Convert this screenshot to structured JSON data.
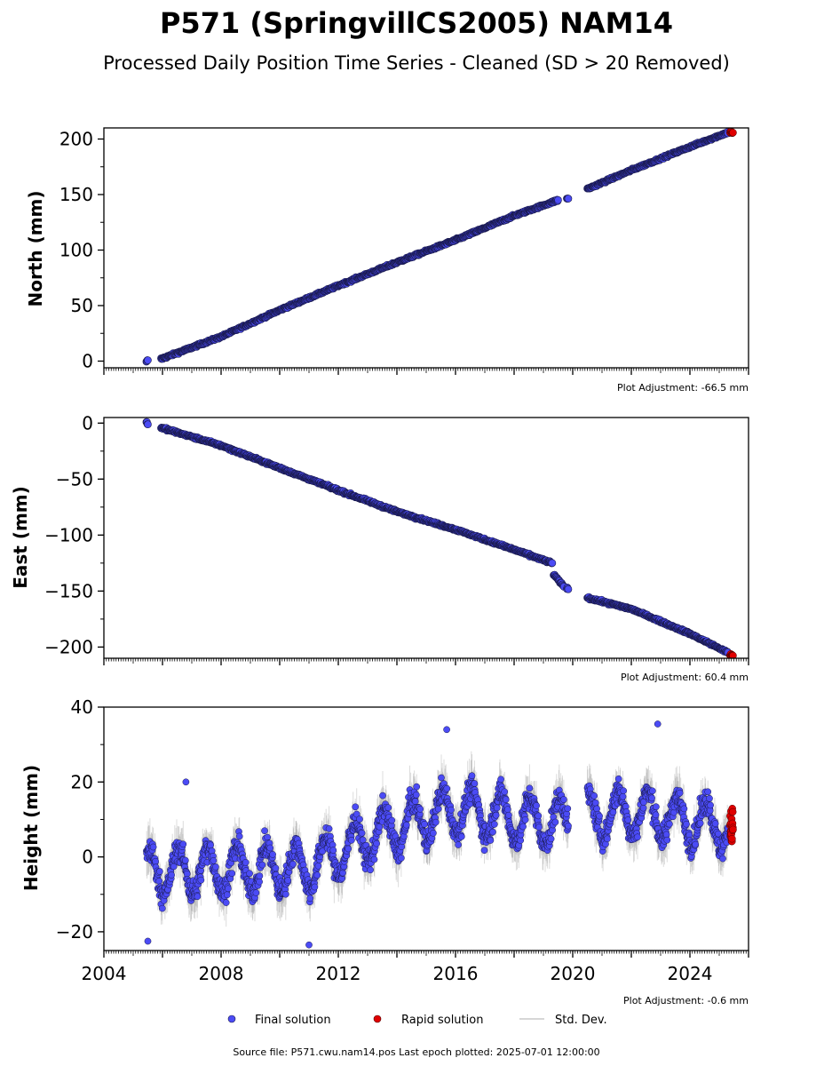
{
  "title": "P571 (SpringvillCS2005) NAM14",
  "subtitle": "Processed Daily Position Time Series - Cleaned (SD > 20 Removed)",
  "footer": "Source file: P571.cwu.nam14.pos  Last epoch plotted: 2025-07-01 12:00:00",
  "colors": {
    "final": "#4b4bf5",
    "rapid": "#e00000",
    "stddev": "#9a9a9a",
    "edge": "#1a1a4d"
  },
  "legend": [
    {
      "label": "Final solution",
      "marker": "dot",
      "color": "#4b4bf5"
    },
    {
      "label": "Rapid solution",
      "marker": "dot",
      "color": "#e00000"
    },
    {
      "label": "Std. Dev.",
      "marker": "line",
      "color": "#c8c8c8"
    }
  ],
  "chart_data": [
    {
      "type": "scatter",
      "ylabel": "North (mm)",
      "adjustment": "Plot Adjustment: -66.5 mm",
      "xlim": [
        2004,
        2026
      ],
      "ylim": [
        -6,
        210
      ],
      "yticks": [
        0,
        50,
        100,
        150,
        200
      ],
      "ytick_labels": [
        "0",
        "50",
        "100",
        "150",
        "200"
      ],
      "show_xticklabels": false,
      "segments": [
        {
          "x": [
            2005.45,
            2005.5
          ],
          "y": [
            -1,
            1
          ]
        },
        {
          "x": [
            2005.95,
            2008.0,
            2010.0,
            2012.0,
            2014.0,
            2016.0,
            2018.0,
            2019.5
          ],
          "y": [
            2,
            22,
            46,
            68,
            89,
            109,
            131,
            145
          ]
        },
        {
          "x": [
            2019.8,
            2019.85
          ],
          "y": [
            146,
            147
          ]
        },
        {
          "x": [
            2020.5,
            2022.0,
            2024.0,
            2025.3
          ],
          "y": [
            155,
            172,
            193,
            206
          ]
        }
      ],
      "rapid": {
        "x": [
          2025.35,
          2025.55
        ],
        "y": [
          205,
          207
        ]
      }
    },
    {
      "type": "scatter",
      "ylabel": "East (mm)",
      "adjustment": "Plot Adjustment: 60.4 mm",
      "xlim": [
        2004,
        2026
      ],
      "ylim": [
        -210,
        5
      ],
      "yticks": [
        0,
        -50,
        -100,
        -150,
        -200
      ],
      "ytick_labels": [
        "0",
        "−50",
        "−100",
        "−150",
        "−200"
      ],
      "show_xticklabels": false,
      "segments": [
        {
          "x": [
            2005.45,
            2005.5
          ],
          "y": [
            1,
            -1
          ]
        },
        {
          "x": [
            2005.95,
            2008.0,
            2010.0,
            2012.0,
            2014.0,
            2016.0,
            2018.0,
            2019.3
          ],
          "y": [
            -4,
            -20,
            -40,
            -60,
            -79,
            -95,
            -113,
            -125
          ]
        },
        {
          "x": [
            2019.35,
            2019.5,
            2019.7
          ],
          "y": [
            -135,
            -140,
            -146
          ]
        },
        {
          "x": [
            2019.8,
            2019.85
          ],
          "y": [
            -147,
            -148
          ]
        },
        {
          "x": [
            2020.5,
            2022.0,
            2024.0,
            2025.3
          ],
          "y": [
            -156,
            -166,
            -188,
            -205
          ]
        }
      ],
      "rapid": {
        "x": [
          2025.35,
          2025.55
        ],
        "y": [
          -206,
          -208
        ]
      }
    },
    {
      "type": "scatter",
      "ylabel": "Height (mm)",
      "adjustment": "Plot Adjustment: -0.6 mm",
      "xlim": [
        2004,
        2026
      ],
      "ylim": [
        -25,
        40
      ],
      "yticks": [
        -20,
        0,
        20,
        40
      ],
      "ytick_labels": [
        "−20",
        "0",
        "20",
        "40"
      ],
      "show_xticklabels": true,
      "xticks": [
        2004,
        2008,
        2012,
        2016,
        2020,
        2024
      ],
      "xtick_labels": [
        "2004",
        "2008",
        "2012",
        "2016",
        "2020",
        "2024"
      ],
      "ranges": [
        [
          2005.45,
          2019.85
        ],
        [
          2020.5,
          2025.3
        ]
      ],
      "trend": {
        "x": [
          2005.5,
          2011.0,
          2013.0,
          2016.0,
          2019.0,
          2022.0,
          2025.3
        ],
        "y": [
          -4,
          -3,
          5,
          13,
          9,
          12,
          8
        ]
      },
      "seasonal_amplitude_mm": 6,
      "scatter_spread_mm": 4,
      "outliers": {
        "x": [
          2005.5,
          2006.8,
          2015.7,
          2022.9,
          2011.0
        ],
        "y": [
          -22.5,
          20,
          34,
          35.5,
          -23.5
        ]
      },
      "rapid": {
        "x": [
          2025.35,
          2025.55
        ],
        "y": [
          4,
          13
        ]
      }
    }
  ]
}
